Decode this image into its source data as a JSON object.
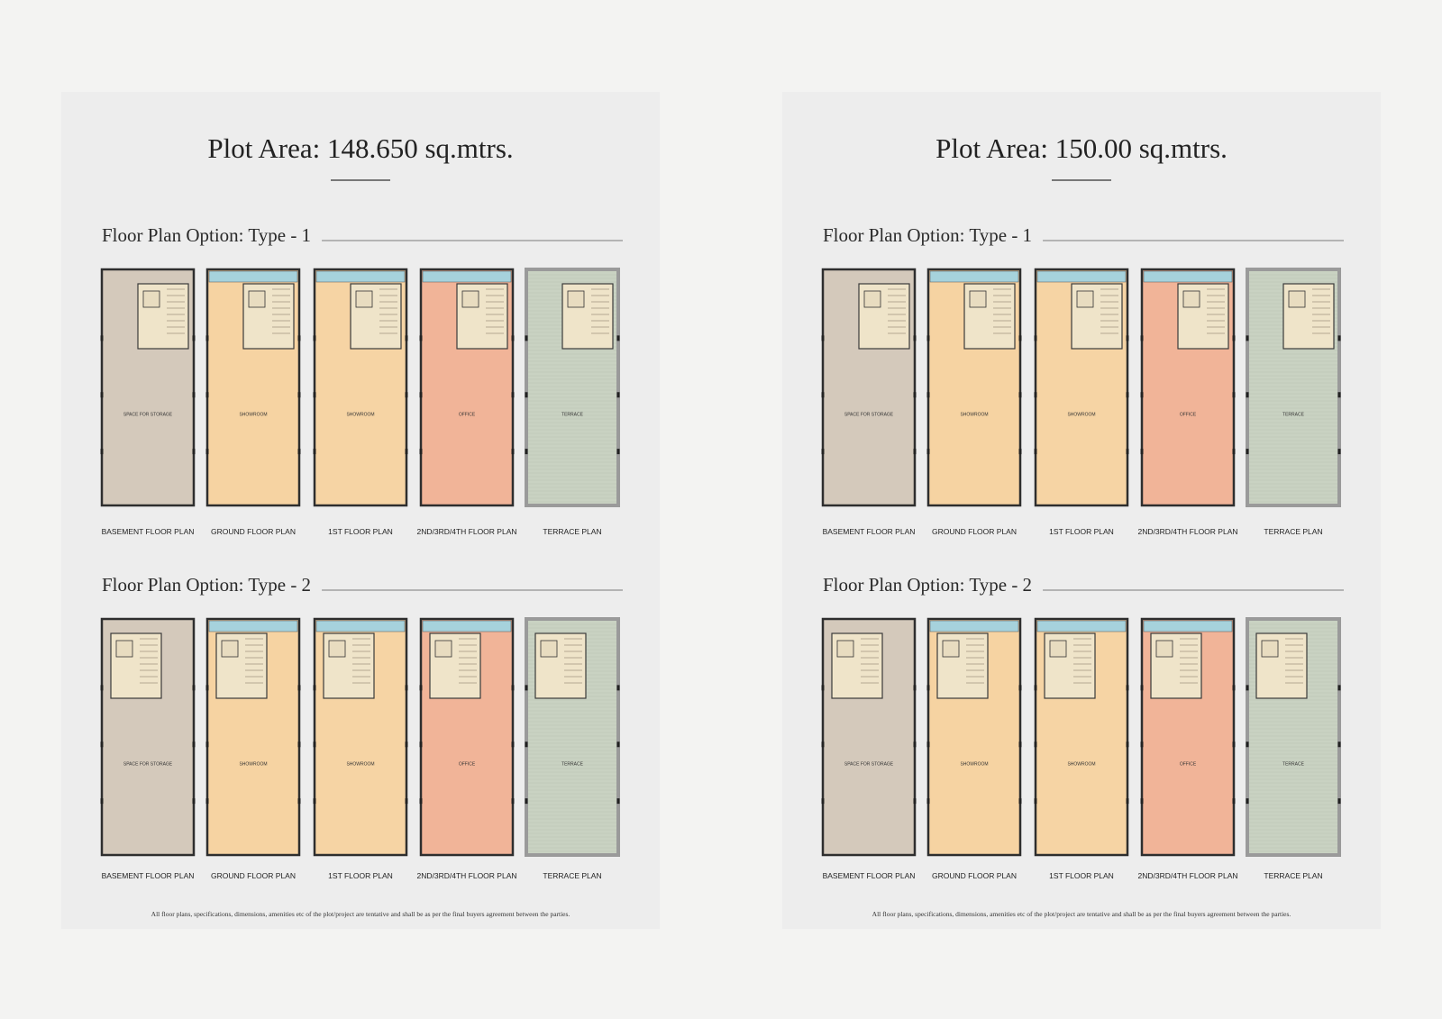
{
  "pages": [
    {
      "title": "Plot Area: 148.650 sq.mtrs.",
      "sections": [
        {
          "heading": "Floor Plan Option: Type - 1",
          "plans": [
            {
              "label": "SPACE FOR STORAGE",
              "caption": "BASEMENT FLOOR PLAN"
            },
            {
              "label": "SHOWROOM",
              "caption": "GROUND FLOOR PLAN"
            },
            {
              "label": "SHOWROOM",
              "caption": "1ST FLOOR PLAN"
            },
            {
              "label": "OFFICE",
              "caption": "2ND/3RD/4TH FLOOR PLAN"
            },
            {
              "label": "TERRACE",
              "caption": "TERRACE PLAN"
            }
          ]
        },
        {
          "heading": "Floor Plan Option: Type - 2",
          "plans": [
            {
              "label": "SPACE FOR STORAGE",
              "caption": "BASEMENT FLOOR PLAN"
            },
            {
              "label": "SHOWROOM",
              "caption": "GROUND FLOOR PLAN"
            },
            {
              "label": "SHOWROOM",
              "caption": "1ST FLOOR PLAN"
            },
            {
              "label": "OFFICE",
              "caption": "2ND/3RD/4TH FLOOR PLAN"
            },
            {
              "label": "TERRACE",
              "caption": "TERRACE PLAN"
            }
          ]
        }
      ],
      "disclaimer": "All floor plans, specifications, dimensions, amenities etc of the plot/project are tentative and shall be as per the final buyers agreement between the parties."
    },
    {
      "title": "Plot Area: 150.00 sq.mtrs.",
      "sections": [
        {
          "heading": "Floor Plan Option: Type - 1",
          "plans": [
            {
              "label": "SPACE FOR STORAGE",
              "caption": "BASEMENT FLOOR PLAN"
            },
            {
              "label": "SHOWROOM",
              "caption": "GROUND FLOOR PLAN"
            },
            {
              "label": "SHOWROOM",
              "caption": "1ST FLOOR PLAN"
            },
            {
              "label": "OFFICE",
              "caption": "2ND/3RD/4TH FLOOR PLAN"
            },
            {
              "label": "TERRACE",
              "caption": "TERRACE PLAN"
            }
          ]
        },
        {
          "heading": "Floor Plan Option: Type - 2",
          "plans": [
            {
              "label": "SPACE FOR STORAGE",
              "caption": "BASEMENT FLOOR PLAN"
            },
            {
              "label": "SHOWROOM",
              "caption": "GROUND FLOOR PLAN"
            },
            {
              "label": "SHOWROOM",
              "caption": "1ST FLOOR PLAN"
            },
            {
              "label": "OFFICE",
              "caption": "2ND/3RD/4TH FLOOR PLAN"
            },
            {
              "label": "TERRACE",
              "caption": "TERRACE PLAN"
            }
          ]
        }
      ],
      "disclaimer": "All floor plans, specifications, dimensions, amenities etc of the plot/project are tentative and shall be as per the final buyers agreement between the parties."
    }
  ]
}
